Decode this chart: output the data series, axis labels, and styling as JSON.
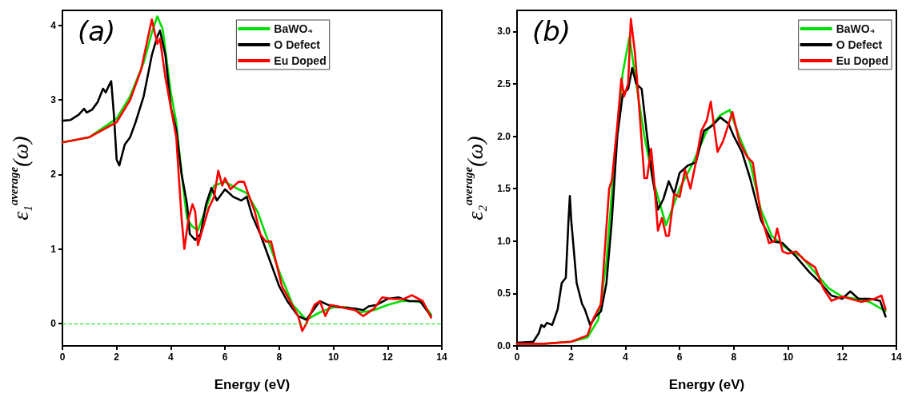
{
  "chart_data": [
    {
      "type": "line",
      "title": "(a)",
      "xlabel": "Energy (eV)",
      "ylabel": "ε$_{1}$$^{average}$(ω)",
      "xlim": [
        0,
        14
      ],
      "xticks": [
        0,
        2,
        4,
        6,
        8,
        10,
        12,
        14
      ],
      "ylim": [
        -0.3,
        4.2
      ],
      "yticks": [
        0,
        1,
        2,
        3,
        4
      ],
      "grid": false,
      "legend": "top",
      "marker": "none",
      "line_style": "solid",
      "ref_lines": [
        {
          "axis": "y",
          "value": 0,
          "color": "#00e000",
          "line_style": "dashed"
        }
      ],
      "series": [
        {
          "name": "BaWO₄",
          "color": "#00e000",
          "x": [
            0,
            1,
            2,
            2.5,
            3,
            3.3,
            3.5,
            3.7,
            4.0,
            4.2,
            4.4,
            4.6,
            4.8,
            5.0,
            5.3,
            5.6,
            6,
            6.5,
            6.8,
            7.2,
            7.6,
            8.0,
            8.5,
            9.0,
            9.5,
            10,
            10.5,
            11,
            11.5,
            12,
            12.5,
            13,
            13.3,
            13.6
          ],
          "values": [
            2.43,
            2.5,
            2.75,
            3.05,
            3.5,
            3.9,
            4.12,
            3.95,
            3.1,
            2.7,
            2.0,
            1.4,
            1.3,
            1.25,
            1.55,
            1.85,
            1.9,
            1.8,
            1.75,
            1.5,
            1.1,
            0.7,
            0.25,
            0.05,
            0.15,
            0.22,
            0.22,
            0.15,
            0.18,
            0.25,
            0.3,
            0.3,
            0.28,
            0.12
          ]
        },
        {
          "name": "O Defect",
          "color": "#000000",
          "x": [
            0,
            0.3,
            0.6,
            0.8,
            0.9,
            1.1,
            1.3,
            1.5,
            1.6,
            1.7,
            1.8,
            1.9,
            2.0,
            2.1,
            2.3,
            2.5,
            2.7,
            3.0,
            3.3,
            3.5,
            3.6,
            3.8,
            4.0,
            4.2,
            4.4,
            4.6,
            4.7,
            4.9,
            5.1,
            5.3,
            5.5,
            5.7,
            6.0,
            6.3,
            6.6,
            6.8,
            7.0,
            7.3,
            7.6,
            8.0,
            8.3,
            8.7,
            9.0,
            9.3,
            9.5,
            9.8,
            10.2,
            10.8,
            11.1,
            11.3,
            11.6,
            12,
            12.4,
            12.8,
            13.2,
            13.6
          ],
          "values": [
            2.72,
            2.73,
            2.8,
            2.88,
            2.83,
            2.87,
            2.97,
            3.15,
            3.1,
            3.18,
            3.25,
            2.8,
            2.2,
            2.12,
            2.4,
            2.5,
            2.7,
            3.05,
            3.6,
            3.85,
            3.93,
            3.6,
            2.9,
            2.6,
            2.0,
            1.6,
            1.2,
            1.12,
            1.2,
            1.6,
            1.82,
            1.65,
            1.8,
            1.7,
            1.65,
            1.7,
            1.45,
            1.2,
            0.9,
            0.5,
            0.3,
            0.1,
            0.05,
            0.2,
            0.3,
            0.25,
            0.22,
            0.2,
            0.18,
            0.23,
            0.25,
            0.33,
            0.35,
            0.3,
            0.3,
            0.1
          ]
        },
        {
          "name": "Eu Doped",
          "color": "#ff0000",
          "x": [
            0,
            1,
            2,
            2.5,
            2.9,
            3.3,
            3.5,
            3.6,
            3.8,
            4.0,
            4.2,
            4.4,
            4.5,
            4.65,
            4.8,
            4.9,
            5.0,
            5.2,
            5.4,
            5.6,
            5.75,
            5.9,
            6.0,
            6.2,
            6.5,
            6.7,
            6.9,
            7.1,
            7.3,
            7.5,
            7.7,
            7.9,
            8.1,
            8.4,
            8.7,
            8.85,
            9.0,
            9.3,
            9.5,
            9.7,
            9.9,
            10.3,
            10.5,
            10.8,
            11.1,
            11.5,
            11.8,
            12.2,
            12.6,
            12.9,
            13.3,
            13.6
          ],
          "values": [
            2.43,
            2.5,
            2.7,
            3.0,
            3.4,
            4.08,
            3.75,
            3.82,
            3.3,
            2.9,
            2.5,
            1.4,
            1.0,
            1.4,
            1.6,
            1.5,
            1.05,
            1.3,
            1.55,
            1.7,
            2.05,
            1.85,
            1.95,
            1.8,
            1.9,
            1.9,
            1.7,
            1.5,
            1.2,
            1.1,
            1.1,
            0.8,
            0.5,
            0.3,
            0.1,
            -0.1,
            0.0,
            0.25,
            0.3,
            0.1,
            0.25,
            0.22,
            0.2,
            0.18,
            0.1,
            0.2,
            0.35,
            0.33,
            0.33,
            0.38,
            0.3,
            0.08
          ]
        }
      ]
    },
    {
      "type": "line",
      "title": "(b)",
      "xlabel": "Energy (eV)",
      "ylabel": "ε$_{2}$$^{average}$(ω)",
      "xlim": [
        0,
        14
      ],
      "xticks": [
        0,
        2,
        4,
        6,
        8,
        10,
        12,
        14
      ],
      "ylim": [
        0,
        3.2
      ],
      "yticks": [
        {
          "value": 0,
          "label": "0.0"
        },
        {
          "value": 0.5,
          "label": "0.5"
        },
        {
          "value": 1,
          "label": "1.0"
        },
        {
          "value": 1.5,
          "label": "1.5"
        },
        {
          "value": 2,
          "label": "2.0"
        },
        {
          "value": 2.5,
          "label": "2.5"
        },
        {
          "value": 3,
          "label": "3.0"
        }
      ],
      "grid": false,
      "legend": "top right",
      "marker": "none",
      "line_style": "solid",
      "series": [
        {
          "name": "BaWO₄",
          "color": "#00e000",
          "x": [
            0,
            1,
            2,
            2.6,
            3.0,
            3.3,
            3.6,
            3.9,
            4.15,
            4.4,
            4.7,
            5.0,
            5.5,
            6.0,
            6.5,
            7.0,
            7.5,
            7.85,
            8.2,
            8.6,
            9.0,
            9.4,
            10,
            10.5,
            11,
            11.5,
            12,
            12.5,
            13,
            13.6
          ],
          "values": [
            0.02,
            0.02,
            0.04,
            0.08,
            0.25,
            0.8,
            1.8,
            2.6,
            2.95,
            2.5,
            2.0,
            1.6,
            1.15,
            1.5,
            1.75,
            2.05,
            2.2,
            2.25,
            2.0,
            1.75,
            1.3,
            1.05,
            0.92,
            0.85,
            0.7,
            0.55,
            0.47,
            0.45,
            0.42,
            0.33
          ]
        },
        {
          "name": "O Defect",
          "color": "#000000",
          "x": [
            0,
            0.6,
            0.8,
            0.9,
            1.0,
            1.1,
            1.3,
            1.5,
            1.65,
            1.8,
            1.9,
            1.95,
            2.0,
            2.2,
            2.4,
            2.5,
            2.7,
            2.9,
            3.1,
            3.3,
            3.5,
            3.7,
            3.9,
            4.1,
            4.25,
            4.4,
            4.6,
            4.8,
            5.0,
            5.2,
            5.4,
            5.6,
            5.8,
            6.0,
            6.3,
            6.6,
            6.9,
            7.2,
            7.5,
            7.8,
            8.0,
            8.3,
            8.6,
            9.0,
            9.4,
            9.8,
            10.3,
            10.8,
            11.2,
            11.6,
            12.0,
            12.3,
            12.6,
            13.0,
            13.4,
            13.6
          ],
          "values": [
            0.03,
            0.04,
            0.12,
            0.2,
            0.18,
            0.22,
            0.2,
            0.35,
            0.6,
            0.65,
            1.2,
            1.43,
            1.2,
            0.6,
            0.4,
            0.35,
            0.2,
            0.28,
            0.33,
            0.6,
            1.2,
            2.0,
            2.4,
            2.45,
            2.65,
            2.5,
            2.45,
            2.0,
            1.6,
            1.3,
            1.4,
            1.57,
            1.45,
            1.65,
            1.72,
            1.75,
            2.05,
            2.1,
            2.18,
            2.12,
            2.0,
            1.85,
            1.6,
            1.2,
            1.0,
            0.98,
            0.85,
            0.7,
            0.6,
            0.48,
            0.45,
            0.52,
            0.45,
            0.45,
            0.43,
            0.28
          ]
        },
        {
          "name": "Eu Doped",
          "color": "#ff0000",
          "x": [
            0,
            1,
            2,
            2.6,
            2.8,
            3.1,
            3.4,
            3.5,
            3.7,
            3.85,
            3.95,
            4.1,
            4.2,
            4.35,
            4.5,
            4.7,
            4.8,
            4.95,
            5.05,
            5.2,
            5.35,
            5.5,
            5.6,
            5.8,
            6.0,
            6.2,
            6.4,
            6.6,
            6.8,
            7.0,
            7.15,
            7.4,
            7.6,
            7.95,
            8.2,
            8.5,
            8.7,
            9.0,
            9.3,
            9.5,
            9.6,
            9.8,
            10.0,
            10.3,
            10.6,
            11.0,
            11.3,
            11.6,
            12.0,
            12.3,
            12.7,
            13.2,
            13.45,
            13.6
          ],
          "values": [
            0.02,
            0.02,
            0.04,
            0.1,
            0.25,
            0.4,
            1.5,
            1.58,
            2.1,
            2.55,
            2.38,
            2.5,
            3.12,
            2.8,
            2.3,
            1.6,
            1.6,
            1.88,
            1.6,
            1.1,
            1.22,
            1.05,
            1.05,
            1.45,
            1.42,
            1.68,
            1.5,
            1.75,
            2.05,
            2.15,
            2.33,
            1.85,
            1.95,
            2.23,
            1.95,
            1.8,
            1.75,
            1.25,
            0.98,
            1.0,
            1.12,
            0.9,
            0.88,
            0.9,
            0.82,
            0.75,
            0.55,
            0.43,
            0.47,
            0.45,
            0.42,
            0.45,
            0.48,
            0.35
          ]
        }
      ]
    }
  ]
}
